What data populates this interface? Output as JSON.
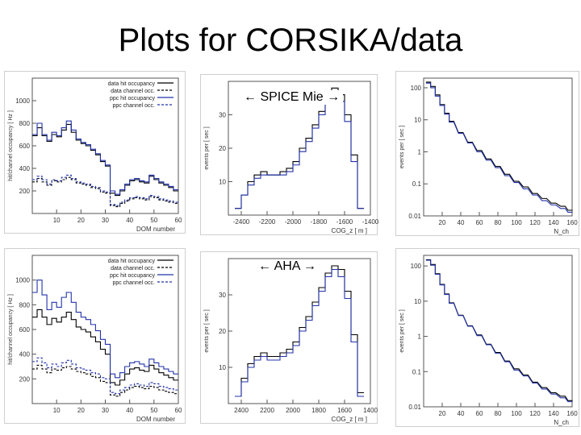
{
  "slide": {
    "title": "Plots for CORSIKA/data",
    "label_top": "← SPICE Mie →",
    "label_bottom": "← AHA →"
  },
  "colors": {
    "data": "#000000",
    "sim": "#2233aa",
    "axis": "#555555"
  },
  "chart_data": [
    {
      "id": "occ-top",
      "type": "line",
      "xlabel": "DOM number",
      "ylabel": "hit/channel occupancy [ Hz ]",
      "xlim": [
        0,
        60
      ],
      "ylim": [
        0,
        1200
      ],
      "xticks": [
        10,
        20,
        30,
        40,
        50,
        60
      ],
      "yticks": [
        200,
        400,
        600,
        800,
        1000
      ],
      "legend": [
        "data hit occupancy",
        "data channel occ.",
        "ppc hit occupancy",
        "ppc channel occ."
      ],
      "x": [
        1,
        3,
        5,
        7,
        9,
        11,
        13,
        15,
        17,
        19,
        21,
        23,
        25,
        27,
        29,
        31,
        33,
        35,
        37,
        39,
        41,
        43,
        45,
        47,
        49,
        51,
        53,
        55,
        57,
        59
      ],
      "series": [
        {
          "name": "data hit occupancy",
          "values": [
            690,
            760,
            690,
            640,
            700,
            680,
            740,
            790,
            720,
            650,
            620,
            600,
            560,
            520,
            460,
            420,
            180,
            160,
            200,
            250,
            290,
            300,
            280,
            270,
            330,
            300,
            270,
            250,
            230,
            200
          ]
        },
        {
          "name": "data channel occ.",
          "values": [
            280,
            310,
            280,
            250,
            290,
            280,
            300,
            320,
            300,
            270,
            260,
            250,
            230,
            220,
            190,
            180,
            70,
            60,
            90,
            110,
            130,
            140,
            130,
            120,
            150,
            140,
            120,
            110,
            100,
            90
          ]
        },
        {
          "name": "ppc hit occupancy",
          "values": [
            700,
            800,
            700,
            650,
            720,
            690,
            760,
            820,
            740,
            660,
            630,
            610,
            570,
            530,
            470,
            430,
            200,
            170,
            210,
            260,
            300,
            310,
            290,
            280,
            340,
            310,
            280,
            260,
            240,
            210
          ]
        },
        {
          "name": "ppc channel occ.",
          "values": [
            300,
            330,
            300,
            260,
            300,
            290,
            320,
            340,
            310,
            280,
            270,
            260,
            240,
            230,
            200,
            190,
            80,
            70,
            100,
            120,
            140,
            150,
            140,
            130,
            160,
            150,
            130,
            120,
            110,
            100
          ]
        }
      ]
    },
    {
      "id": "cog-top",
      "type": "line",
      "xlabel": "COG_z [ m ]",
      "ylabel": "events per [ sec ]",
      "xlim": [
        -2500,
        -1400
      ],
      "ylim": [
        0,
        40
      ],
      "xticks": [
        -2400,
        -2200,
        -2000,
        -1800,
        -1600,
        -1400
      ],
      "yticks": [
        10,
        20,
        30
      ],
      "x": [
        -2425,
        -2375,
        -2325,
        -2275,
        -2225,
        -2175,
        -2125,
        -2075,
        -2025,
        -1975,
        -1925,
        -1875,
        -1825,
        -1775,
        -1725,
        -1675,
        -1625,
        -1575,
        -1525,
        -1475
      ],
      "series": [
        {
          "name": "data",
          "values": [
            2,
            6,
            10,
            12,
            13,
            12,
            12,
            13,
            14,
            16,
            20,
            23,
            27,
            31,
            35,
            38,
            36,
            30,
            18,
            2
          ]
        },
        {
          "name": "ppc",
          "values": [
            2,
            6,
            9,
            11,
            12,
            12,
            12,
            12,
            13,
            15,
            19,
            22,
            26,
            30,
            34,
            36,
            34,
            28,
            16,
            2
          ]
        }
      ]
    },
    {
      "id": "nch-top",
      "type": "line",
      "xlabel": "N_ch",
      "ylabel": "events per [ sec ]",
      "yscale": "log",
      "xlim": [
        0,
        160
      ],
      "ylim": [
        0.01,
        200
      ],
      "xticks": [
        20,
        40,
        60,
        80,
        100,
        120,
        140,
        160
      ],
      "yticks": [
        0.01,
        0.1,
        1,
        10,
        100
      ],
      "x": [
        5,
        10,
        15,
        20,
        25,
        30,
        40,
        50,
        60,
        70,
        80,
        90,
        100,
        110,
        120,
        130,
        140,
        150,
        158
      ],
      "series": [
        {
          "name": "data",
          "values": [
            150,
            110,
            60,
            30,
            16,
            9,
            4,
            2,
            1.1,
            0.6,
            0.35,
            0.2,
            0.12,
            0.08,
            0.05,
            0.035,
            0.025,
            0.02,
            0.015
          ]
        },
        {
          "name": "ppc",
          "values": [
            140,
            100,
            55,
            28,
            15,
            8.5,
            3.8,
            1.9,
            1,
            0.55,
            0.32,
            0.18,
            0.11,
            0.07,
            0.045,
            0.03,
            0.022,
            0.017,
            0.013
          ]
        }
      ]
    },
    {
      "id": "occ-bottom",
      "type": "line",
      "xlabel": "DOM number",
      "ylabel": "hit/channel occupancy [ Hz ]",
      "xlim": [
        0,
        60
      ],
      "ylim": [
        0,
        1200
      ],
      "xticks": [
        10,
        20,
        30,
        40,
        50,
        60
      ],
      "yticks": [
        200,
        400,
        600,
        800,
        1000
      ],
      "legend": [
        "data hit occupancy",
        "data channel occ.",
        "ppc hit occupancy",
        "ppc channel occ."
      ],
      "x": [
        1,
        3,
        5,
        7,
        9,
        11,
        13,
        15,
        17,
        19,
        21,
        23,
        25,
        27,
        29,
        31,
        33,
        35,
        37,
        39,
        41,
        43,
        45,
        47,
        49,
        51,
        53,
        55,
        57,
        59
      ],
      "series": [
        {
          "name": "data hit occupancy",
          "values": [
            700,
            760,
            700,
            640,
            690,
            660,
            700,
            740,
            680,
            620,
            600,
            580,
            540,
            500,
            440,
            400,
            170,
            150,
            190,
            240,
            280,
            290,
            270,
            260,
            310,
            280,
            250,
            230,
            210,
            190
          ]
        },
        {
          "name": "data channel occ.",
          "values": [
            280,
            310,
            280,
            250,
            280,
            270,
            290,
            300,
            280,
            260,
            250,
            240,
            220,
            210,
            180,
            170,
            70,
            60,
            90,
            110,
            130,
            140,
            130,
            120,
            140,
            130,
            110,
            100,
            90,
            80
          ]
        },
        {
          "name": "ppc hit occupancy",
          "values": [
            900,
            1000,
            880,
            760,
            820,
            780,
            860,
            900,
            820,
            740,
            700,
            680,
            640,
            590,
            520,
            480,
            240,
            210,
            250,
            300,
            330,
            340,
            320,
            300,
            360,
            330,
            300,
            280,
            260,
            240
          ]
        },
        {
          "name": "ppc channel occ.",
          "values": [
            340,
            370,
            330,
            290,
            320,
            300,
            330,
            350,
            320,
            290,
            280,
            270,
            250,
            240,
            210,
            200,
            90,
            80,
            110,
            130,
            150,
            160,
            150,
            140,
            170,
            160,
            140,
            130,
            120,
            110
          ]
        }
      ]
    },
    {
      "id": "cog-bottom",
      "type": "line",
      "xlabel": "COG_z [ m ]",
      "ylabel": "events per [ sec ]",
      "xlim": [
        -2500,
        -1400
      ],
      "ylim": [
        0,
        40
      ],
      "xticks": [
        -2400,
        -2200,
        -2000,
        -1800,
        -1600,
        -1400
      ],
      "xticklabels": [
        "2400",
        "2200",
        "2000",
        "1800",
        "1600",
        "1400"
      ],
      "yticks": [
        10,
        20,
        30
      ],
      "x": [
        -2425,
        -2375,
        -2325,
        -2275,
        -2225,
        -2175,
        -2125,
        -2075,
        -2025,
        -1975,
        -1925,
        -1875,
        -1825,
        -1775,
        -1725,
        -1675,
        -1625,
        -1575,
        -1525,
        -1475
      ],
      "series": [
        {
          "name": "data",
          "values": [
            2,
            7,
            11,
            13,
            14,
            13,
            13,
            14,
            15,
            17,
            21,
            24,
            28,
            32,
            36,
            38,
            37,
            31,
            19,
            3
          ]
        },
        {
          "name": "ppc",
          "values": [
            2,
            6,
            10,
            12,
            13,
            12,
            12,
            13,
            14,
            16,
            20,
            23,
            27,
            31,
            35,
            37,
            35,
            29,
            17,
            2
          ]
        }
      ]
    },
    {
      "id": "nch-bottom",
      "type": "line",
      "xlabel": "N_ch",
      "ylabel": "events per [ sec ]",
      "yscale": "log",
      "xlim": [
        0,
        160
      ],
      "ylim": [
        0.01,
        200
      ],
      "xticks": [
        20,
        40,
        60,
        80,
        100,
        120,
        140,
        160
      ],
      "yticks": [
        0.01,
        0.1,
        1,
        10,
        100
      ],
      "x": [
        5,
        10,
        15,
        20,
        25,
        30,
        40,
        50,
        60,
        70,
        80,
        90,
        100,
        110,
        120,
        130,
        140,
        150,
        158
      ],
      "series": [
        {
          "name": "data",
          "values": [
            150,
            110,
            60,
            30,
            16,
            9,
            4,
            2,
            1.1,
            0.6,
            0.35,
            0.2,
            0.12,
            0.08,
            0.05,
            0.035,
            0.025,
            0.02,
            0.015
          ]
        },
        {
          "name": "ppc",
          "values": [
            145,
            105,
            58,
            29,
            15.5,
            8.7,
            3.9,
            1.95,
            1.05,
            0.58,
            0.33,
            0.19,
            0.11,
            0.075,
            0.047,
            0.032,
            0.023,
            0.018,
            0.014
          ]
        }
      ]
    }
  ]
}
